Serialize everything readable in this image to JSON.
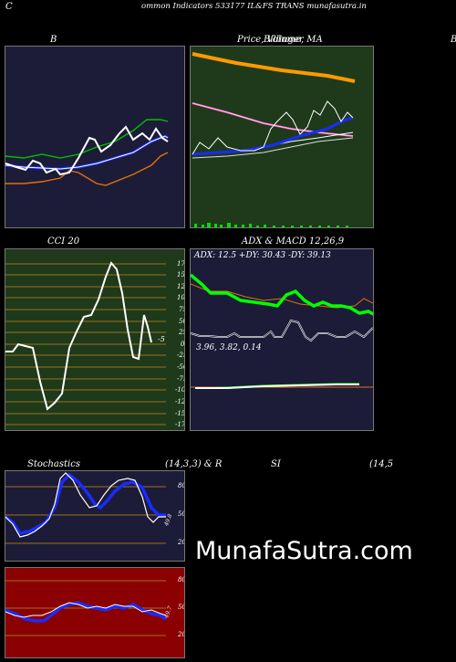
{
  "header": {
    "left_letter": "C",
    "title": "ommon  Indicators 533177 IL&FS TRANS munafasutra.in"
  },
  "bollinger": {
    "title": "B",
    "right_letter": "B"
  },
  "price": {
    "title": "Price,  Volume,  MA",
    "overlay_word": "Billinger"
  },
  "cci": {
    "title": "CCI 20",
    "last_value": "-5",
    "ticks": [
      "175",
      "150",
      "125",
      "100",
      "75",
      "50",
      "25",
      "0",
      "-25",
      "-50",
      "-75",
      "-100",
      "-125",
      "-150",
      "-175"
    ]
  },
  "adx_macd": {
    "title": "ADX  & MACD 12,26,9",
    "adx_line": "ADX: 12.5 +DY: 30.43 -DY: 39.13",
    "macd_line": "3.96,  3.82,  0.14"
  },
  "stoch": {
    "title_left": "Stochastics",
    "title_mid": "(14,3,3) & R",
    "ticks": [
      "80",
      "50",
      "20"
    ],
    "last_value": "49.8"
  },
  "rsi": {
    "title_left": "SI",
    "title_right": "(14,5",
    "ticks": [
      "80",
      "50",
      "20"
    ],
    "last_value": "49.7"
  },
  "watermark": "MunafaSutra.com",
  "colors": {
    "panel_navy": "#1c1c38",
    "panel_green": "#1e3a1a",
    "panel_red": "#8b0000",
    "adx_green": "#00ff00",
    "bb_upper": "#00c000",
    "bb_lower": "#e07010",
    "ma_blue": "#1a2bff",
    "price_orange": "#ff9900"
  }
}
